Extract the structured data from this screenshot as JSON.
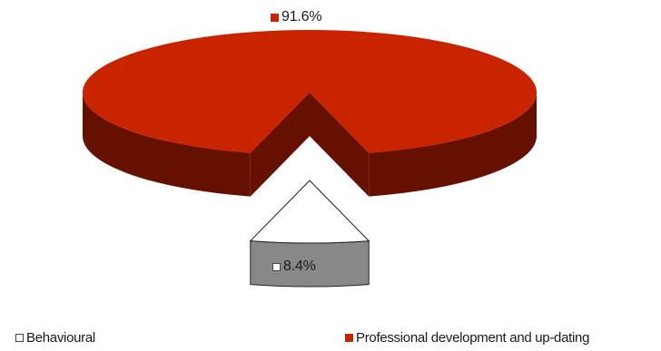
{
  "chart_data": {
    "type": "pie",
    "style": "3d-exploded",
    "slices": [
      {
        "label": "Professional development and up-dating",
        "value": 91.6,
        "value_label": "91.6%",
        "color": "#c92400",
        "side_color": "#661000"
      },
      {
        "label": "Behavioural",
        "value": 8.4,
        "value_label": "8.4%",
        "color": "#ffffff",
        "side_color": "#888888"
      }
    ],
    "legend": {
      "position": "bottom",
      "items": [
        {
          "label": "Behavioural",
          "color": "#ffffff"
        },
        {
          "label": "Professional development and up-dating",
          "color": "#c92400"
        }
      ]
    }
  }
}
